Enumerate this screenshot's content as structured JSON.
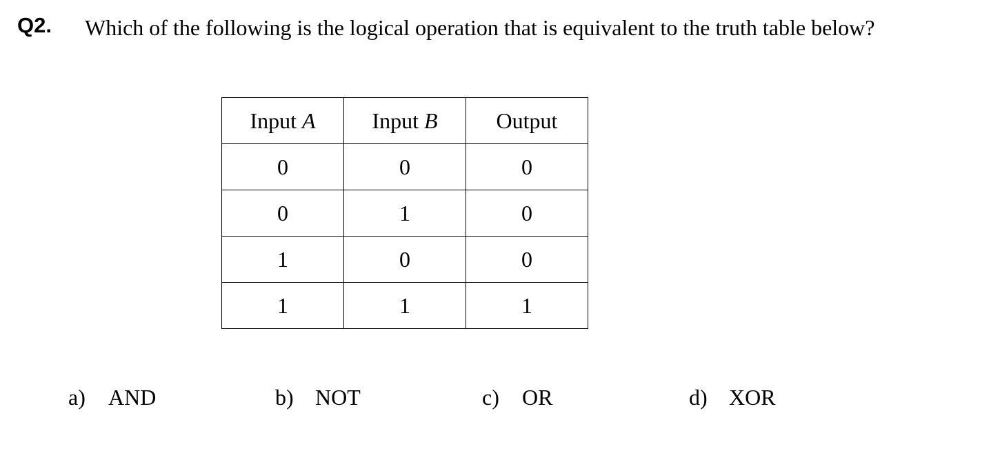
{
  "question": {
    "number": "Q2.",
    "text": "Which of the following is the logical operation that is equivalent to the truth table below?"
  },
  "truth_table": {
    "headers": [
      {
        "prefix": "Input ",
        "var": "A"
      },
      {
        "prefix": "Input ",
        "var": "B"
      },
      {
        "prefix": "Output",
        "var": ""
      }
    ],
    "rows": [
      [
        "0",
        "0",
        "0"
      ],
      [
        "0",
        "1",
        "0"
      ],
      [
        "1",
        "0",
        "0"
      ],
      [
        "1",
        "1",
        "1"
      ]
    ]
  },
  "options": [
    {
      "letter": "a)",
      "text": "AND"
    },
    {
      "letter": "b)",
      "text": "NOT"
    },
    {
      "letter": "c)",
      "text": "OR"
    },
    {
      "letter": "d)",
      "text": "XOR"
    }
  ]
}
